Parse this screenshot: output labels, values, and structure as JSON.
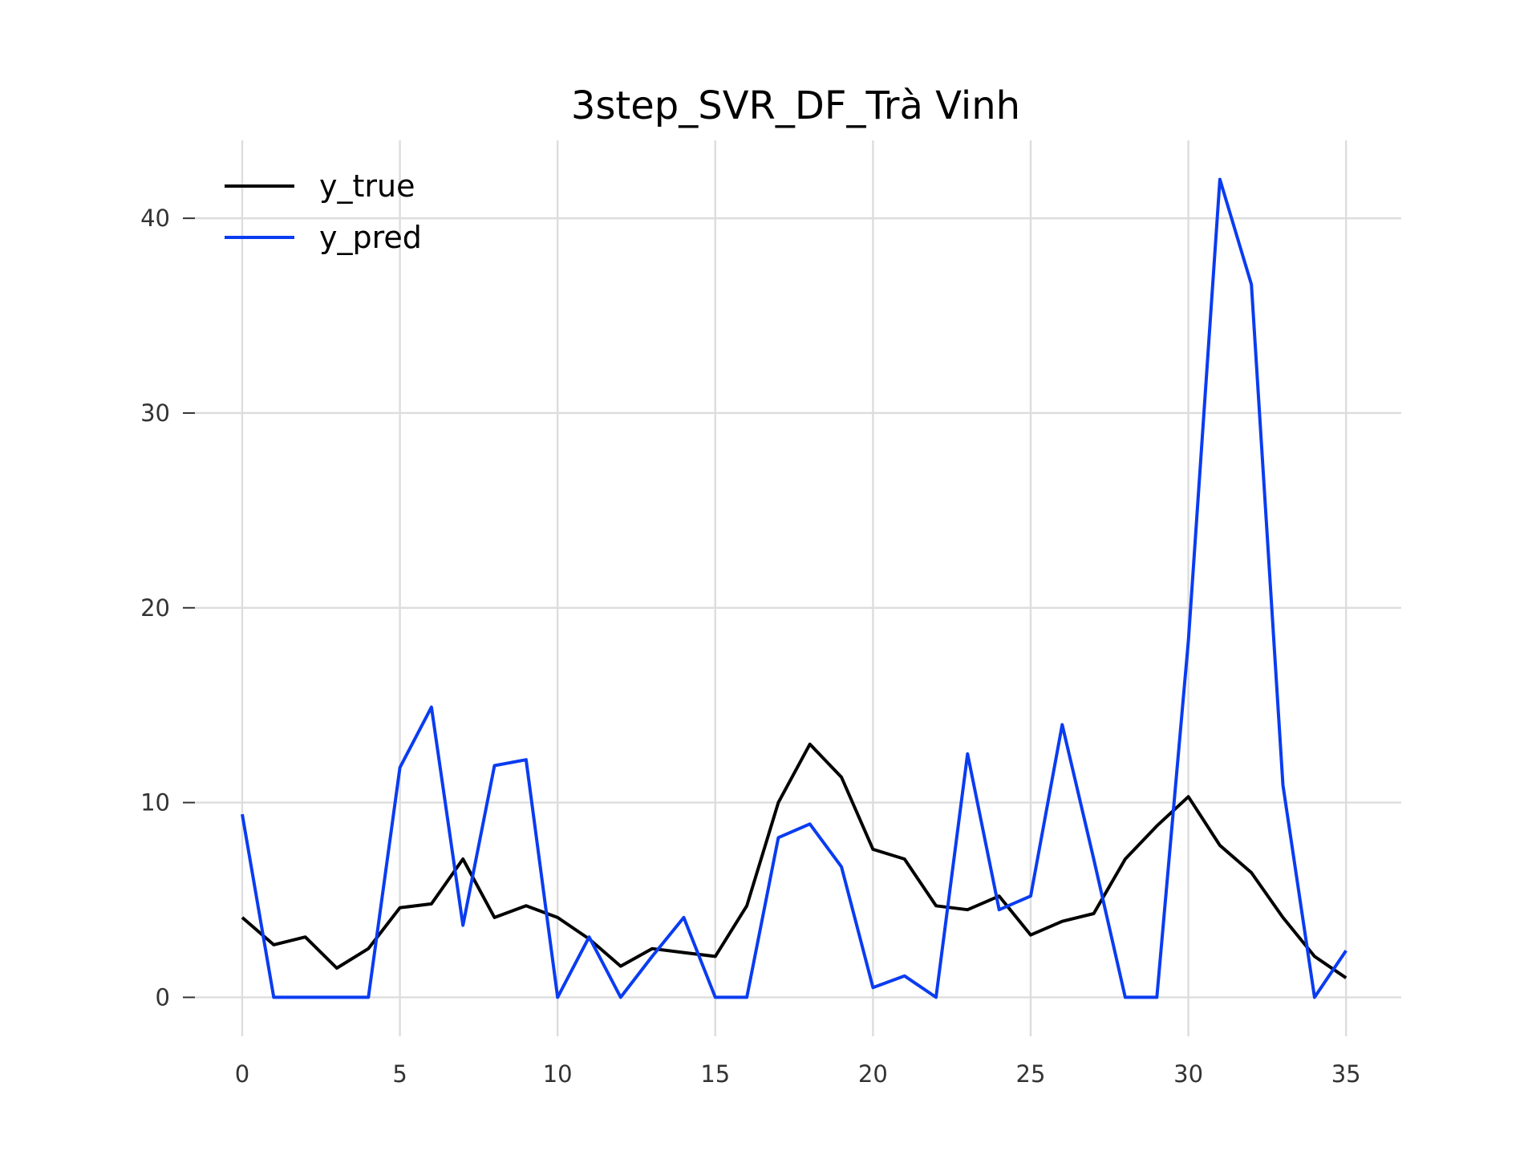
{
  "chart_data": {
    "type": "line",
    "title": "3step_SVR_DF_Trà Vinh",
    "xlabel": "",
    "ylabel": "",
    "xlim": [
      -1.5,
      36.75
    ],
    "ylim": [
      -2.0,
      44.0
    ],
    "x_ticks": [
      0,
      5,
      10,
      15,
      20,
      25,
      30,
      35
    ],
    "y_ticks": [
      0,
      10,
      20,
      30,
      40
    ],
    "grid": true,
    "legend_position": "top-left",
    "x": [
      0,
      1,
      2,
      3,
      4,
      5,
      6,
      7,
      8,
      9,
      10,
      11,
      12,
      13,
      14,
      15,
      16,
      17,
      18,
      19,
      20,
      21,
      22,
      23,
      24,
      25,
      26,
      27,
      28,
      29,
      30,
      31,
      32,
      33,
      34,
      35
    ],
    "series": [
      {
        "name": "y_true",
        "color": "#000000",
        "values": [
          4.1,
          2.7,
          3.1,
          1.5,
          2.5,
          4.6,
          4.8,
          7.1,
          4.1,
          4.7,
          4.1,
          3.0,
          1.6,
          2.5,
          2.3,
          2.1,
          4.7,
          10.0,
          13.0,
          11.3,
          7.6,
          7.1,
          4.7,
          4.5,
          5.2,
          3.2,
          3.9,
          4.3,
          7.1,
          8.8,
          10.3,
          7.8,
          6.4,
          4.1,
          2.1,
          1.0
        ]
      },
      {
        "name": "y_pred",
        "color": "#0a3cf0",
        "values": [
          9.4,
          0.0,
          0.0,
          0.0,
          0.0,
          11.8,
          14.9,
          3.7,
          11.9,
          12.2,
          0.0,
          3.1,
          0.0,
          2.1,
          4.1,
          0.0,
          0.0,
          8.2,
          8.9,
          6.7,
          0.5,
          1.1,
          0.0,
          12.5,
          4.5,
          5.2,
          14.0,
          7.1,
          0.0,
          0.0,
          18.3,
          42.0,
          36.6,
          10.9,
          0.0,
          2.4
        ]
      }
    ]
  }
}
